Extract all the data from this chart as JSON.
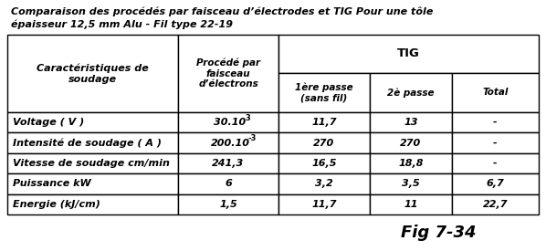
{
  "title_line1": "Comparaison des procédés par faisceau d’électrodes et TIG Pour une tôle",
  "title_line2": "épaisseur 12,5 mm Alu - Fil type 22-19",
  "fig_label": "Fig 7-34",
  "rows": [
    [
      "Voltage ( V )",
      "30.10",
      "3",
      "11,7",
      "13",
      "-"
    ],
    [
      "Intensité de soudage ( A )",
      "200.10",
      "-3",
      "270",
      "270",
      "-"
    ],
    [
      "Vitesse de soudage cm/min",
      "241,3",
      "",
      "16,5",
      "18,8",
      "-"
    ],
    [
      "Puissance kW",
      "6",
      "",
      "3,2",
      "3,5",
      "6,7"
    ],
    [
      "Energie (kJ/cm)",
      "1,5",
      "",
      "11,7",
      "11",
      "22,7"
    ]
  ],
  "background_color": "#ffffff",
  "text_color": "#000000",
  "border_color": "#000000",
  "title_fontsize": 8.0,
  "header_fontsize": 8.0,
  "cell_fontsize": 8.0,
  "fig_label_fontsize": 13
}
